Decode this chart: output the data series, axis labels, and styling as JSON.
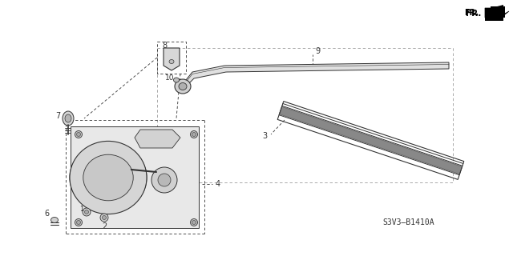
{
  "background_color": "#ffffff",
  "line_color": "#333333",
  "diagram_code_ref": "S3V3–B1410A",
  "diagram_code_ref2": "S3V3-B1410A"
}
